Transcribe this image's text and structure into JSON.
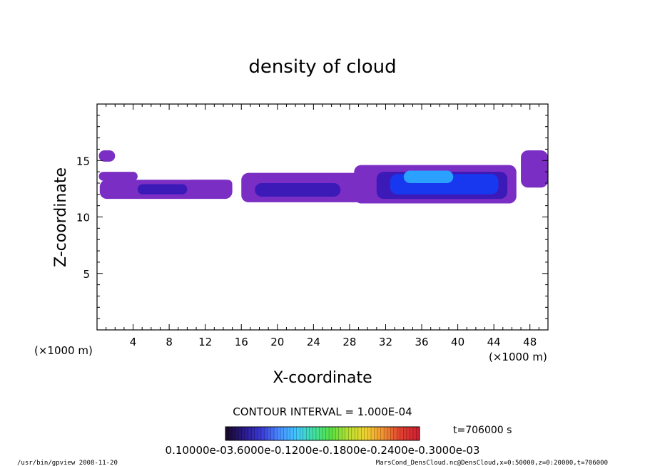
{
  "chart_data": {
    "type": "heatmap",
    "title": "density of cloud",
    "xlabel": "X-coordinate",
    "ylabel": "Z-coordinate",
    "x_unit_left": "(×1000 m)",
    "x_unit_right": "(×1000 m)",
    "xlim": [
      0,
      50
    ],
    "ylim": [
      0,
      20
    ],
    "x_ticks": [
      4,
      8,
      12,
      16,
      20,
      24,
      28,
      32,
      36,
      40,
      44,
      48
    ],
    "y_ticks": [
      5,
      10,
      15
    ],
    "grid": false,
    "contour_interval_text": "CONTOUR INTERVAL = 1.000E-04",
    "time_text": "t=706000 s",
    "colorbar_labels_text": "0.10000e-03.6000e-0.1200e-0.1800e-0.2400e-0.3000e-03",
    "colorscale": [
      "#1a0a2e",
      "#2a1a8a",
      "#3a3ad8",
      "#4a8cff",
      "#3fc9ff",
      "#3fe0a0",
      "#5ae040",
      "#b8e030",
      "#f0d030",
      "#f09030",
      "#e04030",
      "#d02030"
    ],
    "cloud_colors": {
      "outer": "#7b2ec4",
      "mid": "#3b1ab8",
      "core": "#1838f0",
      "bright": "#2aa0ff"
    },
    "cloud_regions": [
      {
        "x0": 0.2,
        "x1": 2.0,
        "z0": 14.9,
        "z1": 15.9,
        "level": "outer"
      },
      {
        "x0": 0.2,
        "x1": 4.5,
        "z0": 13.2,
        "z1": 14.0,
        "level": "outer"
      },
      {
        "x0": 0.3,
        "x1": 15.0,
        "z0": 11.6,
        "z1": 13.3,
        "level": "outer"
      },
      {
        "x0": 4.5,
        "x1": 10.0,
        "z0": 12.0,
        "z1": 12.9,
        "level": "mid"
      },
      {
        "x0": 10.0,
        "x1": 15.0,
        "z0": 12.5,
        "z1": 13.3,
        "level": "outer"
      },
      {
        "x0": 16.0,
        "x1": 31.0,
        "z0": 11.3,
        "z1": 13.9,
        "level": "outer"
      },
      {
        "x0": 17.5,
        "x1": 27.0,
        "z0": 11.8,
        "z1": 13.0,
        "level": "mid"
      },
      {
        "x0": 28.5,
        "x1": 46.5,
        "z0": 11.2,
        "z1": 14.6,
        "level": "outer"
      },
      {
        "x0": 31.0,
        "x1": 45.5,
        "z0": 11.6,
        "z1": 14.0,
        "level": "mid"
      },
      {
        "x0": 32.5,
        "x1": 44.5,
        "z0": 12.0,
        "z1": 13.8,
        "level": "core"
      },
      {
        "x0": 34.0,
        "x1": 39.5,
        "z0": 13.0,
        "z1": 14.1,
        "level": "bright"
      },
      {
        "x0": 47.0,
        "x1": 50.0,
        "z0": 12.6,
        "z1": 15.9,
        "level": "outer"
      }
    ]
  },
  "footer": {
    "left": "/usr/bin/gpview   2008-11-20",
    "right": "MarsCond_DensCloud.nc@DensCloud,x=0:50000,z=0:20000,t=706000"
  }
}
